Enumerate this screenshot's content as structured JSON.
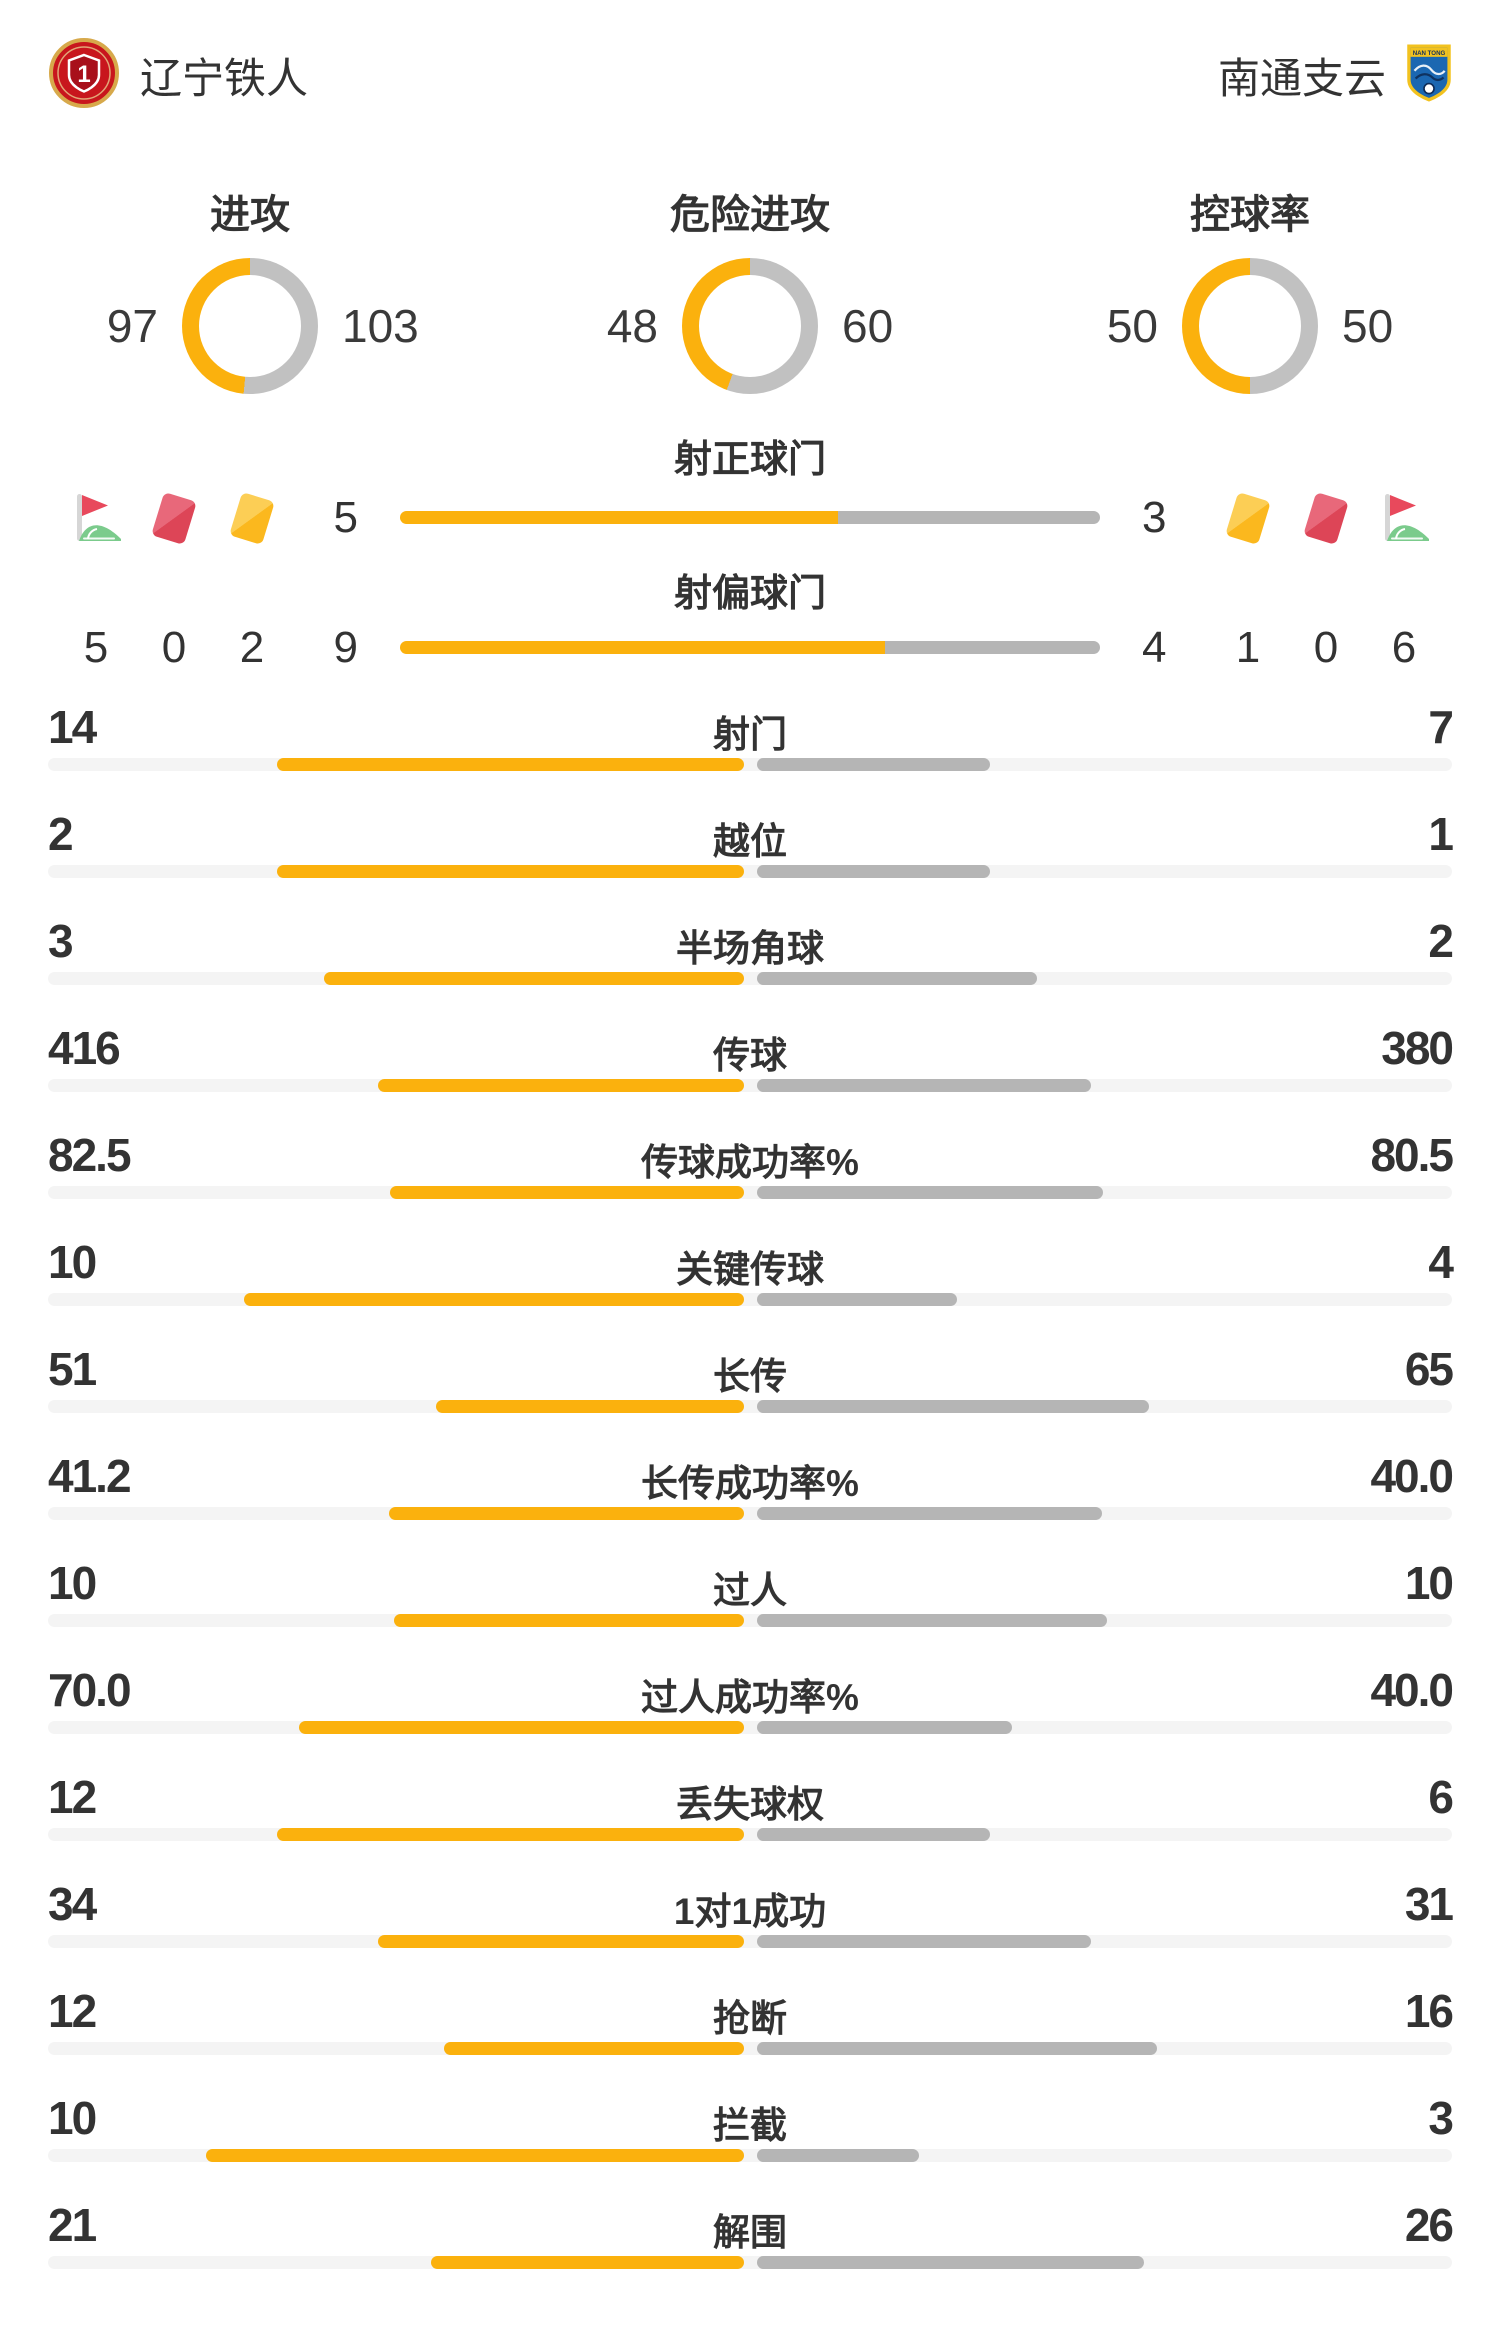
{
  "header": {
    "home": {
      "name": "辽宁铁人",
      "badge": "liaoning-tieren-crest"
    },
    "away": {
      "name": "南通支云",
      "badge": "nantong-zhiyun-crest",
      "badge_text": "NAN TONG"
    }
  },
  "colors": {
    "yellow": "#FBB10D",
    "bar_gray": "#B5B5B5",
    "track": "#F4F4F4",
    "donut_gray": "#C1C1C1",
    "text": "#333333"
  },
  "donuts": [
    {
      "title": "进攻",
      "home": "97",
      "away": "103"
    },
    {
      "title": "危险进攻",
      "home": "48",
      "away": "60"
    },
    {
      "title": "控球率",
      "home": "50",
      "away": "50"
    }
  ],
  "discipline": {
    "home_icons": [
      {
        "type": "corner-flag",
        "value": "5"
      },
      {
        "type": "red-card",
        "value": "0"
      },
      {
        "type": "yellow-card",
        "value": "2"
      }
    ],
    "away_icons": [
      {
        "type": "yellow-card",
        "value": "1"
      },
      {
        "type": "red-card",
        "value": "0"
      },
      {
        "type": "corner-flag",
        "value": "6"
      }
    ]
  },
  "shot_rows": [
    {
      "label": "射正球门",
      "home": "5",
      "away": "3"
    },
    {
      "label": "射偏球门",
      "home": "9",
      "away": "4"
    }
  ],
  "stats": [
    {
      "label": "射门",
      "home": "14",
      "away": "7"
    },
    {
      "label": "越位",
      "home": "2",
      "away": "1"
    },
    {
      "label": "半场角球",
      "home": "3",
      "away": "2"
    },
    {
      "label": "传球",
      "home": "416",
      "away": "380"
    },
    {
      "label": "传球成功率%",
      "home": "82.5",
      "away": "80.5"
    },
    {
      "label": "关键传球",
      "home": "10",
      "away": "4"
    },
    {
      "label": "长传",
      "home": "51",
      "away": "65"
    },
    {
      "label": "长传成功率%",
      "home": "41.2",
      "away": "40.0"
    },
    {
      "label": "过人",
      "home": "10",
      "away": "10"
    },
    {
      "label": "过人成功率%",
      "home": "70.0",
      "away": "40.0"
    },
    {
      "label": "丢失球权",
      "home": "12",
      "away": "6"
    },
    {
      "label": "1对1成功",
      "home": "34",
      "away": "31"
    },
    {
      "label": "抢断",
      "home": "12",
      "away": "16"
    },
    {
      "label": "拦截",
      "home": "10",
      "away": "3"
    },
    {
      "label": "解围",
      "home": "21",
      "away": "26"
    }
  ],
  "chart_data": [
    {
      "type": "pie",
      "title": "进攻",
      "categories": [
        "辽宁铁人",
        "南通支云"
      ],
      "values": [
        97,
        103
      ]
    },
    {
      "type": "pie",
      "title": "危险进攻",
      "categories": [
        "辽宁铁人",
        "南通支云"
      ],
      "values": [
        48,
        60
      ]
    },
    {
      "type": "pie",
      "title": "控球率",
      "categories": [
        "辽宁铁人",
        "南通支云"
      ],
      "values": [
        50,
        50
      ]
    },
    {
      "type": "bar",
      "categories": [
        "射正球门",
        "射偏球门",
        "射门",
        "越位",
        "半场角球",
        "传球",
        "传球成功率%",
        "关键传球",
        "长传",
        "长传成功率%",
        "过人",
        "过人成功率%",
        "丢失球权",
        "1对1成功",
        "抢断",
        "拦截",
        "解围"
      ],
      "series": [
        {
          "name": "辽宁铁人",
          "values": [
            5,
            9,
            14,
            2,
            3,
            416,
            82.5,
            10,
            51,
            41.2,
            10,
            70.0,
            12,
            34,
            12,
            10,
            21
          ]
        },
        {
          "name": "南通支云",
          "values": [
            3,
            4,
            7,
            1,
            2,
            380,
            80.5,
            4,
            65,
            40.0,
            10,
            40.0,
            6,
            31,
            16,
            3,
            26
          ]
        }
      ],
      "legend_position": "sides",
      "grid": false
    }
  ]
}
